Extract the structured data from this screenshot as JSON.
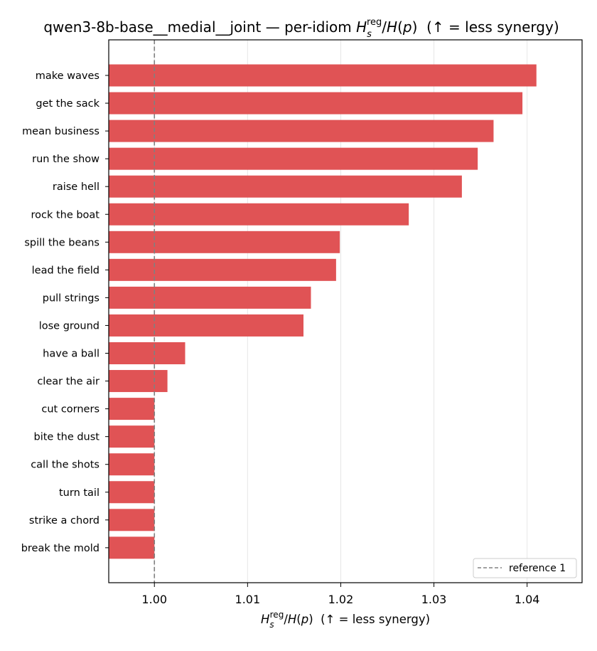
{
  "chart_data": {
    "type": "bar",
    "orientation": "horizontal",
    "title": "qwen3-8b-base__medial__joint — per-idiom H_s^reg/H(p)  (↑ = less synergy)",
    "title_parts": {
      "prefix": "qwen3-8b-base__medial__joint — per-idiom ",
      "suffix": "  (↑ = less synergy)"
    },
    "xlabel": "H_s^reg/H(p)  (↑ = less synergy)",
    "xlabel_parts": {
      "suffix": "  (↑ = less synergy)"
    },
    "ylabel": "",
    "categories": [
      "make waves",
      "get the sack",
      "mean business",
      "run the show",
      "raise hell",
      "rock the boat",
      "spill the beans",
      "lead the field",
      "pull strings",
      "lose ground",
      "have a ball",
      "clear the air",
      "cut corners",
      "bite the dust",
      "call the shots",
      "turn tail",
      "strike a chord",
      "break the mold"
    ],
    "values": [
      1.041,
      1.0395,
      1.0364,
      1.0347,
      1.033,
      1.0273,
      1.0199,
      1.0195,
      1.0168,
      1.016,
      1.0033,
      1.0014,
      1.0,
      1.0,
      1.0,
      1.0,
      1.0,
      1.0
    ],
    "xlim": [
      0.9951,
      1.0459
    ],
    "bar_base": 0.9951,
    "xticks": [
      1.0,
      1.01,
      1.02,
      1.03,
      1.04
    ],
    "xtick_labels": [
      "1.00",
      "1.01",
      "1.02",
      "1.03",
      "1.04"
    ],
    "grid": "x-major",
    "reference_line": {
      "x": 1.0,
      "style": "dashed",
      "label": "reference 1"
    },
    "legend": {
      "entries": [
        "reference 1"
      ],
      "placement": "lower-right"
    },
    "colors": {
      "bar": "#e05355",
      "reference": "#808080",
      "grid": "#e6e6e6",
      "axis": "#000000"
    }
  }
}
